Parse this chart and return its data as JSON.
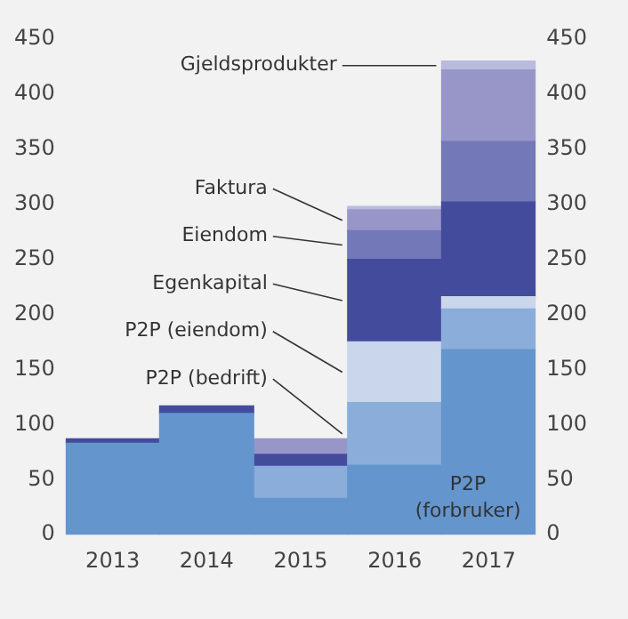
{
  "chart_data": {
    "type": "bar",
    "stacked": true,
    "categories": [
      "2013",
      "2014",
      "2015",
      "2016",
      "2017"
    ],
    "series": [
      {
        "name": "P2P (forbruker)",
        "color": "#6495cd",
        "values": [
          83,
          110,
          33,
          63,
          168
        ]
      },
      {
        "name": "P2P (bedrift)",
        "color": "#8aaed9",
        "values": [
          null,
          null,
          29,
          57,
          37
        ]
      },
      {
        "name": "P2P (eiendom)",
        "color": "#c9d6ec",
        "values": [
          null,
          null,
          null,
          55,
          11
        ]
      },
      {
        "name": "Egenkapital",
        "color": "#434c9c",
        "values": [
          4,
          7,
          11,
          75,
          86
        ]
      },
      {
        "name": "Eiendom",
        "color": "#7378b8",
        "values": [
          null,
          null,
          null,
          26,
          55
        ]
      },
      {
        "name": "Faktura",
        "color": "#9896c9",
        "values": [
          null,
          null,
          14,
          19,
          65
        ]
      },
      {
        "name": "Gjeldsprodukter",
        "color": "#b8bbdd",
        "values": [
          null,
          null,
          null,
          3,
          8
        ]
      }
    ],
    "ylim": [
      0,
      450
    ],
    "yticks": [
      0,
      50,
      100,
      150,
      200,
      250,
      300,
      350,
      400,
      450
    ],
    "y2lim": [
      0,
      450
    ],
    "y2ticks": [
      0,
      50,
      100,
      150,
      200,
      250,
      300,
      350,
      400,
      450
    ],
    "grid": false,
    "legend": false
  }
}
